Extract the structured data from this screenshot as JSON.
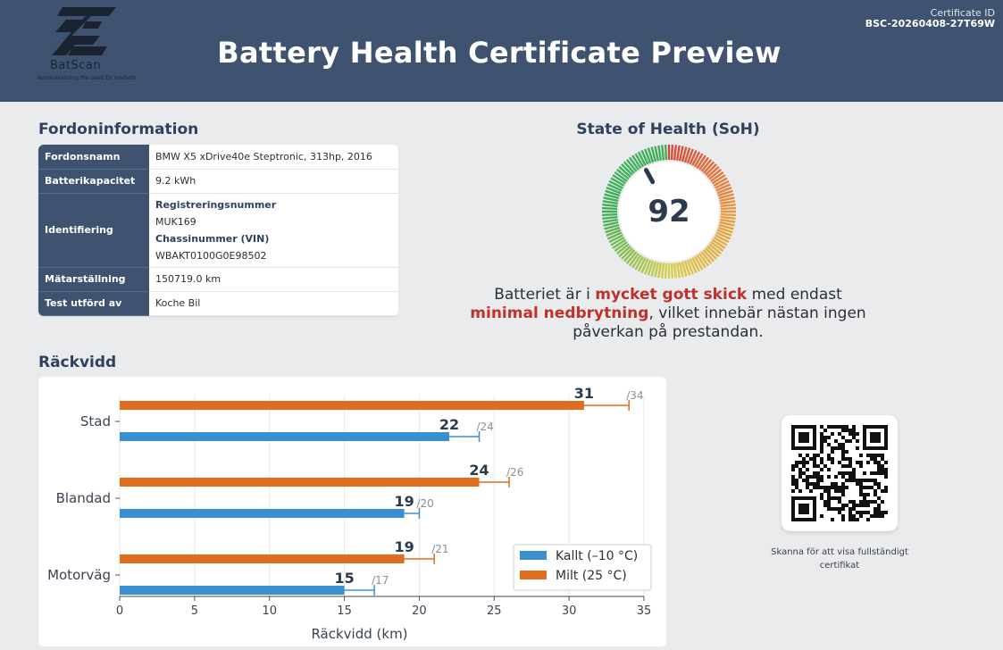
{
  "header": {
    "logo_name": "BatScan",
    "logo_tagline": "Revolutionizing the used EV markets",
    "title": "Battery Health Certificate Preview",
    "cert_id_label": "Certificate ID",
    "cert_id_value": "BSC-20260408-27T69W"
  },
  "vehicle": {
    "section_title": "Fordoninformation",
    "rows": {
      "name_label": "Fordonsnamn",
      "name_value": "BMW X5 xDrive40e Steptronic, 313hp, 2016",
      "capacity_label": "Batterikapacitet",
      "capacity_value": "9.2 kWh",
      "ident_label": "Identifiering",
      "reg_label": "Registreringsnummer",
      "reg_value": "MUK169",
      "vin_label": "Chassinummer (VIN)",
      "vin_value": "WBAKT0100G0E98502",
      "odometer_label": "Mätarställning",
      "odometer_value": "150719.0 km",
      "tested_label": "Test utförd av",
      "tested_value": "Koche Bil"
    }
  },
  "soh": {
    "title": "State of Health (SoH)",
    "value": 92,
    "value_text": "92",
    "text_1": "Batteriet är i ",
    "text_hl_1": "mycket gott skick",
    "text_2": " med endast ",
    "text_hl_2": "minimal nedbrytning",
    "text_3": ", vilket innebär nästan ingen påverkan på prestandan.",
    "colors": {
      "red": "#d44a3a",
      "orange": "#e89a3c",
      "yellow": "#d9cf4a",
      "green": "#3faf5a"
    }
  },
  "range": {
    "section_title": "Räckvidd"
  },
  "chart_data": {
    "type": "bar",
    "orientation": "horizontal",
    "categories": [
      "Stad",
      "Blandad",
      "Motorväg"
    ],
    "series": [
      {
        "name": "Kallt (–10 °C)",
        "color": "#3a8fd1",
        "values": [
          22,
          19,
          15
        ],
        "max": [
          24,
          20,
          17
        ],
        "value_labels": [
          "22",
          "19",
          "15"
        ],
        "max_labels": [
          "/24",
          "/20",
          "/17"
        ]
      },
      {
        "name": "Milt (25 °C)",
        "color": "#e06c1f",
        "values": [
          31,
          24,
          19
        ],
        "max": [
          34,
          26,
          21
        ],
        "value_labels": [
          "31",
          "24",
          "19"
        ],
        "max_labels": [
          "/34",
          "/26",
          "/21"
        ]
      }
    ],
    "xlabel": "Räckvidd (km)",
    "xlim": [
      0,
      35
    ],
    "xticks": [
      "0",
      "5",
      "10",
      "15",
      "20",
      "25",
      "30",
      "35"
    ],
    "grid": true,
    "legend": "bottom-right"
  },
  "qr": {
    "caption": "Skanna för att visa fullständigt certifikat"
  }
}
